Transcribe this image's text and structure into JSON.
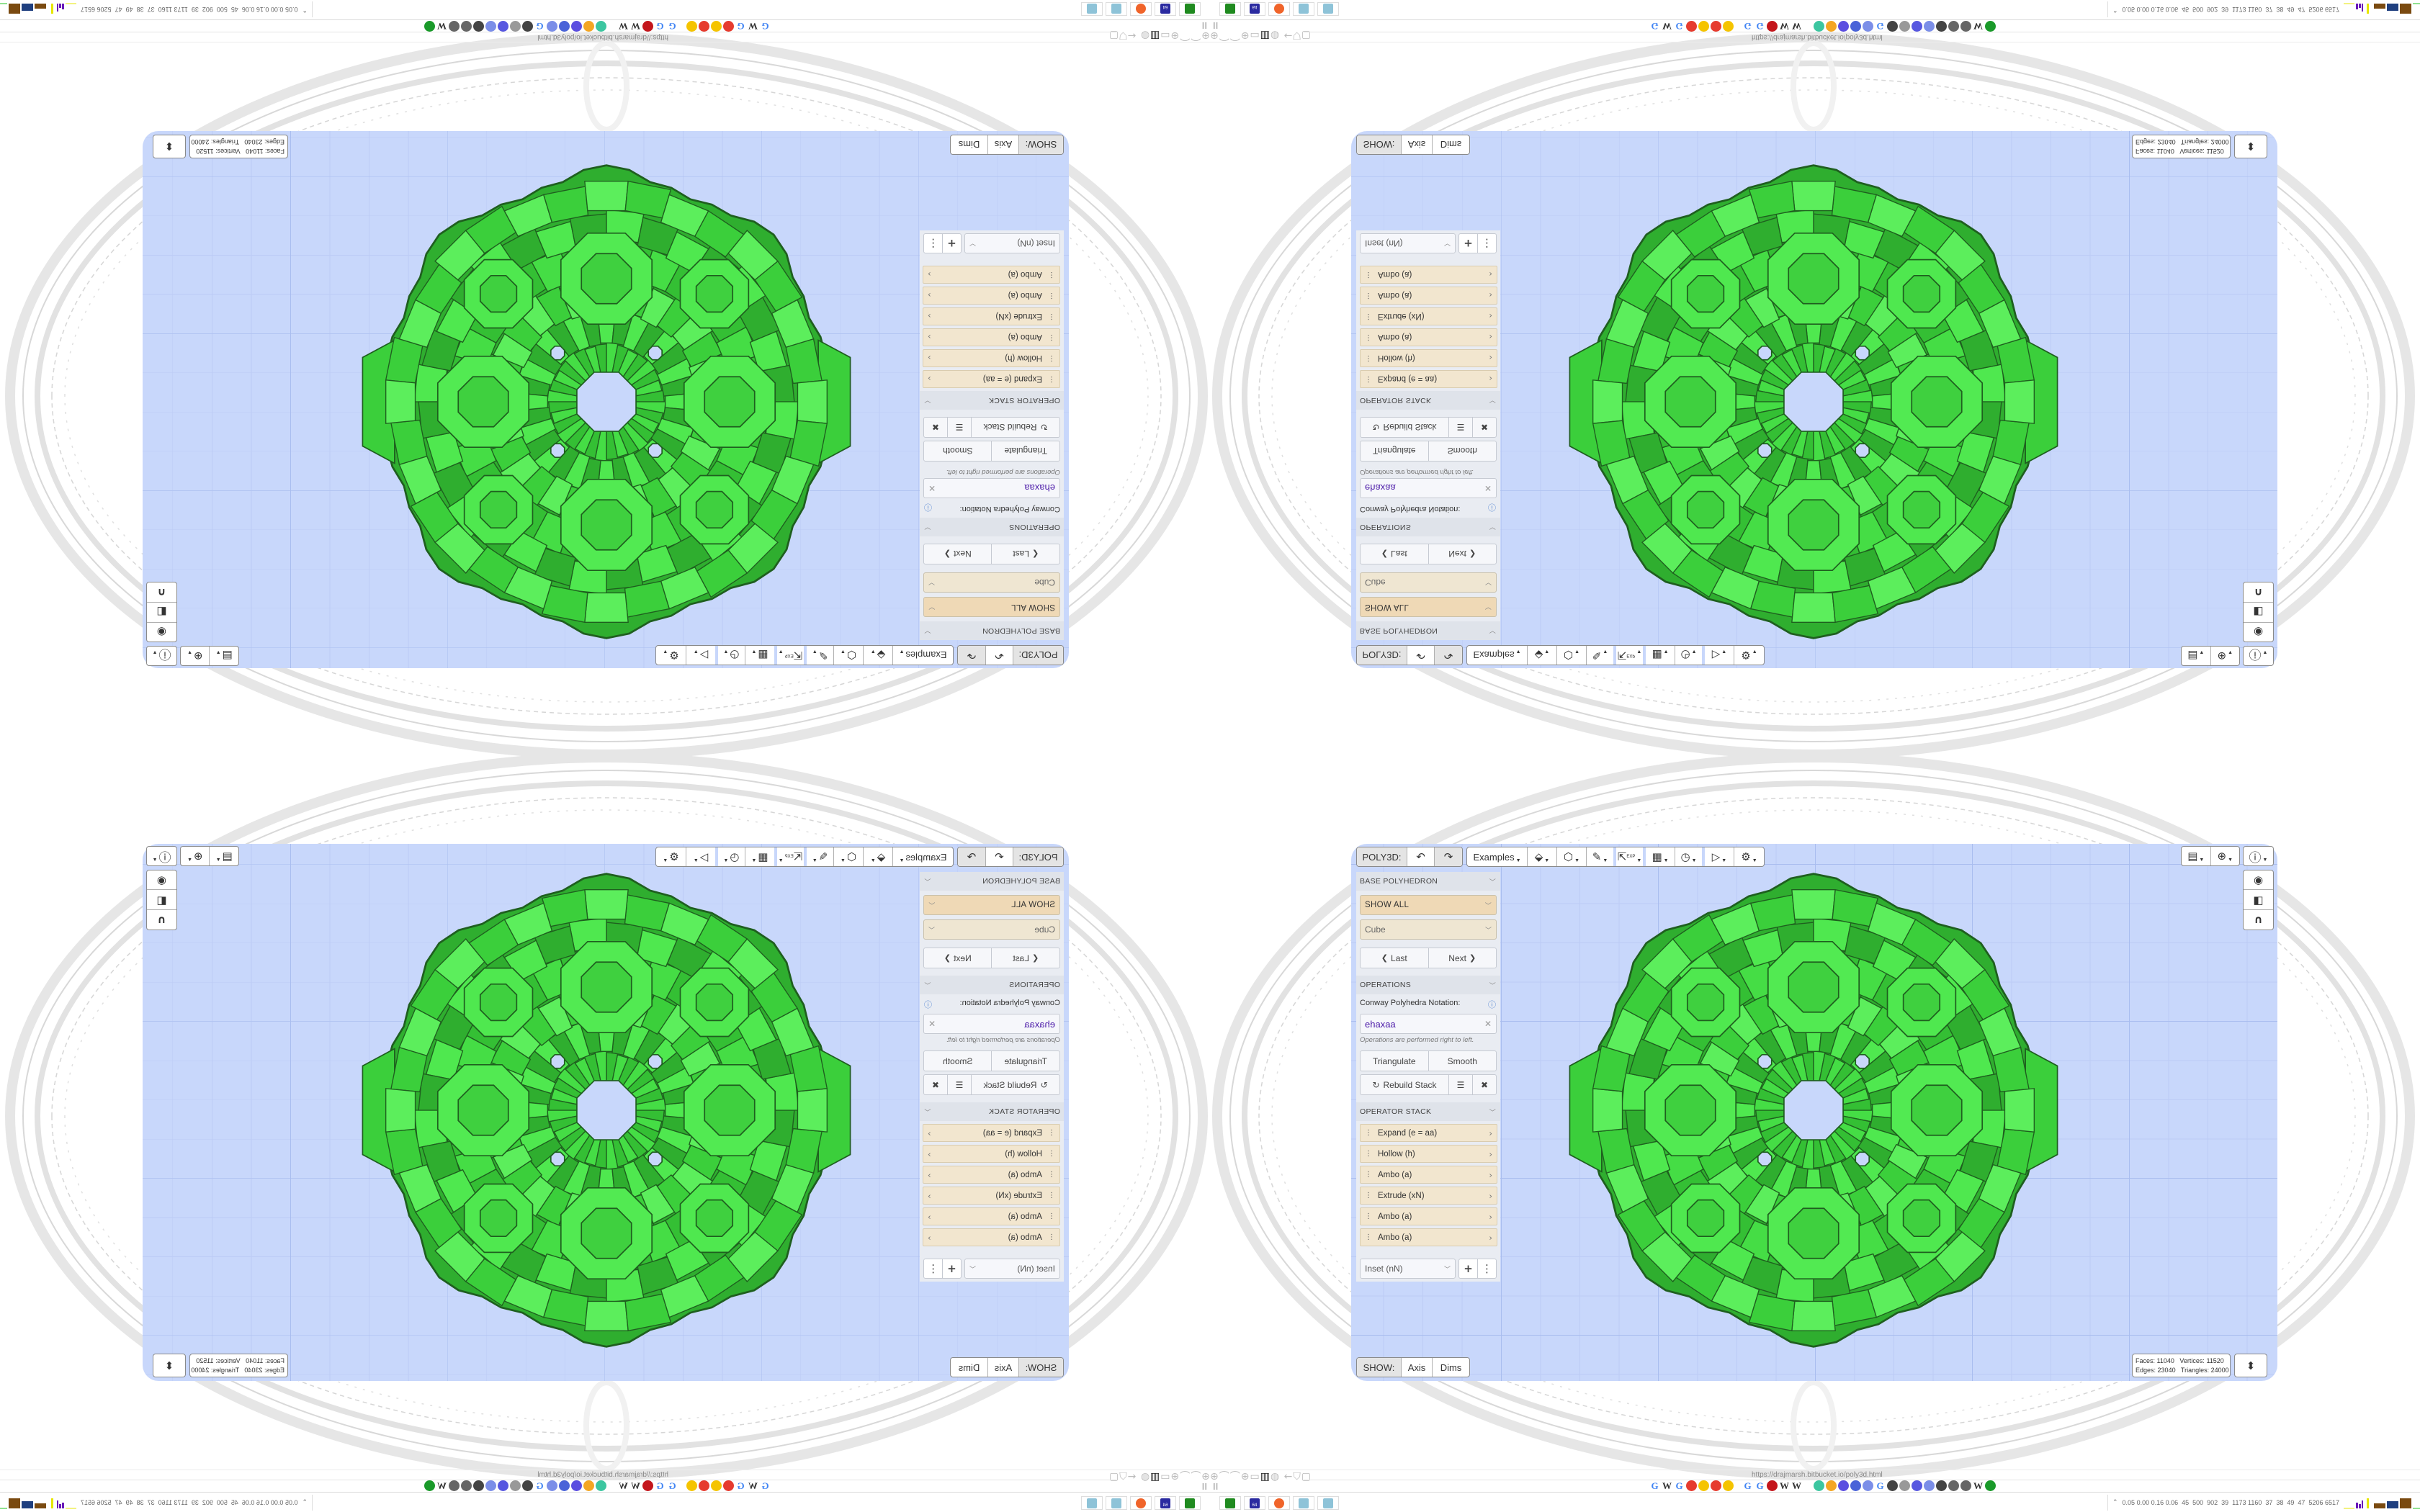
{
  "toolbar": {
    "app_label": "POLY3D:",
    "undo_icon": "undo-icon",
    "redo_icon": "redo-icon",
    "examples_label": "Examples",
    "tools": [
      {
        "name": "paint-tag-icon",
        "glyph": "⬙"
      },
      {
        "name": "cube-view-icon",
        "glyph": "⬡"
      },
      {
        "name": "edit-lines-icon",
        "glyph": "✎"
      },
      {
        "name": "export-icon",
        "glyph": "⇱",
        "label": "EXP"
      },
      {
        "name": "calendar-icon",
        "glyph": "▦"
      },
      {
        "name": "clock-icon",
        "glyph": "◷"
      },
      {
        "name": "play-icon",
        "glyph": "▷"
      },
      {
        "name": "settings-icon",
        "glyph": "⚙"
      }
    ]
  },
  "panel": {
    "base": {
      "header": "BASE POLYHEDRON",
      "filter": "SHOW ALL",
      "shape": "Cube",
      "last": "Last",
      "next": "Next"
    },
    "operations": {
      "header": "OPERATIONS",
      "notation_label": "Conway Polyhedra Notation:",
      "notation_value": "ehaxaa",
      "help": "Operations are performed right to left.",
      "triangulate": "Triangulate",
      "smooth": "Smooth",
      "rebuild": "Rebuild Stack"
    },
    "operator_stack": {
      "header": "OPERATOR STACK",
      "items": [
        {
          "label": "Expand (e = aa)"
        },
        {
          "label": "Hollow (h)"
        },
        {
          "label": "Ambo (a)"
        },
        {
          "label": "Extrude (xN)"
        },
        {
          "label": "Ambo (a)"
        },
        {
          "label": "Ambo (a)"
        }
      ],
      "add_select": "Inset (nN)"
    }
  },
  "viewport": {
    "show_label": "SHOW:",
    "axis": "Axis",
    "dims": "Dims",
    "stats": {
      "faces": "11040",
      "vertices": "11520",
      "edges": "23040",
      "triangles": "24000"
    },
    "stats_labels": {
      "faces": "Faces:",
      "vertices": "Vertices:",
      "edges": "Edges:",
      "triangles": "Triangles:"
    },
    "colors": {
      "background": "#c8d7fb",
      "polyhedron": "#45dd45",
      "edges": "#1f5f1f"
    }
  },
  "browser": {
    "url": "https://drajmarsh.bitbucket.io/poly3d.html",
    "bookmarks": [
      "google",
      "wikipedia",
      "google",
      "yandex",
      "yandex-maps",
      "yandex",
      "yandex-maps",
      "google",
      "google",
      "puzzle",
      "wikipedia",
      "wikipedia",
      "cc",
      "cloud",
      "messenger",
      "vk",
      "blue-app",
      "google",
      "person",
      "gray-app",
      "pocket",
      "blue-app",
      "person",
      "bird",
      "bird",
      "wikipedia",
      "green-app"
    ],
    "status_numbers": "0.05 0.00 0.16 0.06  45  500  902  39  1173 1160  37  38  49  47  5206 6517"
  },
  "taskbar": {
    "items": [
      {
        "name": "terminal-icon",
        "color": "#1f8a1f"
      },
      {
        "name": "floppy-64-icon",
        "color": "#2a2aa0",
        "label": "64"
      },
      {
        "name": "firefox-icon",
        "color": "#f0642a"
      },
      {
        "name": "notepad-icon",
        "color": "#8ec3d8"
      },
      {
        "name": "notepad-icon",
        "color": "#8ec3d8"
      }
    ]
  }
}
